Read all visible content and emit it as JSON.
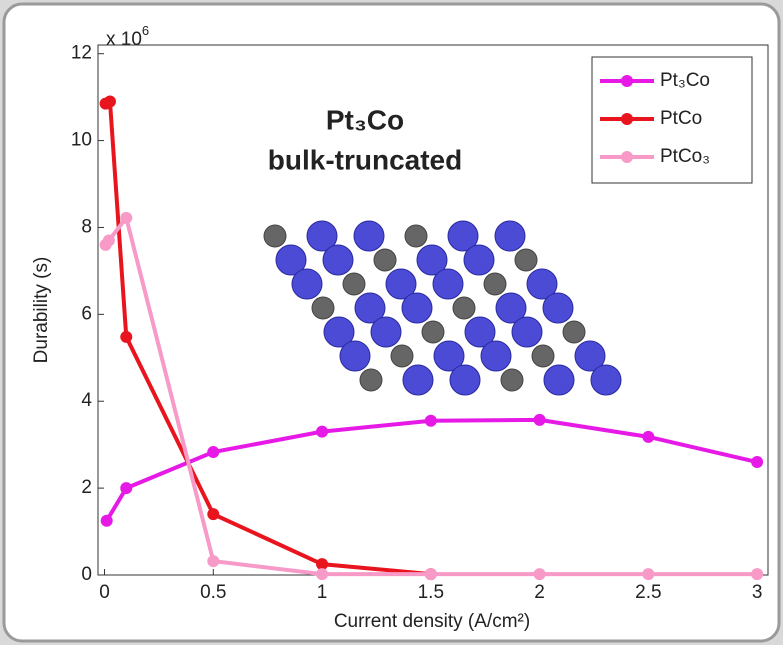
{
  "chart_data": {
    "type": "line",
    "y_multiplier": "x 10",
    "y_multiplier_exponent": "6",
    "annotation": [
      "Pt₃Co",
      "bulk-truncated"
    ],
    "xlabel": "Current density (A/cm²)",
    "ylabel": "Durability (s)",
    "xlim": [
      -0.03,
      3.05
    ],
    "ylim": [
      0,
      12.2
    ],
    "xticks": [
      0,
      0.5,
      1,
      1.5,
      2,
      2.5,
      3
    ],
    "yticks": [
      0,
      2,
      4,
      6,
      8,
      10,
      12
    ],
    "legend": "top-right",
    "series": [
      {
        "name": "Pt₃Co",
        "color": "#e619e6",
        "x": [
          0.01,
          0.1,
          0.5,
          1,
          1.5,
          2,
          2.5,
          3
        ],
        "values": [
          1.25,
          2.0,
          2.83,
          3.3,
          3.55,
          3.57,
          3.18,
          2.6
        ]
      },
      {
        "name": "PtCo",
        "color": "#e8141e",
        "x": [
          0.005,
          0.025,
          0.1,
          0.5,
          1,
          1.5
        ],
        "values": [
          10.85,
          10.9,
          5.48,
          1.4,
          0.25,
          0.02
        ]
      },
      {
        "name": "PtCo₃",
        "color": "#f79ac8",
        "x": [
          0.005,
          0.02,
          0.1,
          0.5,
          1,
          1.5,
          2,
          2.5,
          3
        ],
        "values": [
          7.6,
          7.7,
          8.22,
          0.32,
          0.02,
          0.02,
          0.02,
          0.02,
          0.02
        ]
      }
    ]
  }
}
